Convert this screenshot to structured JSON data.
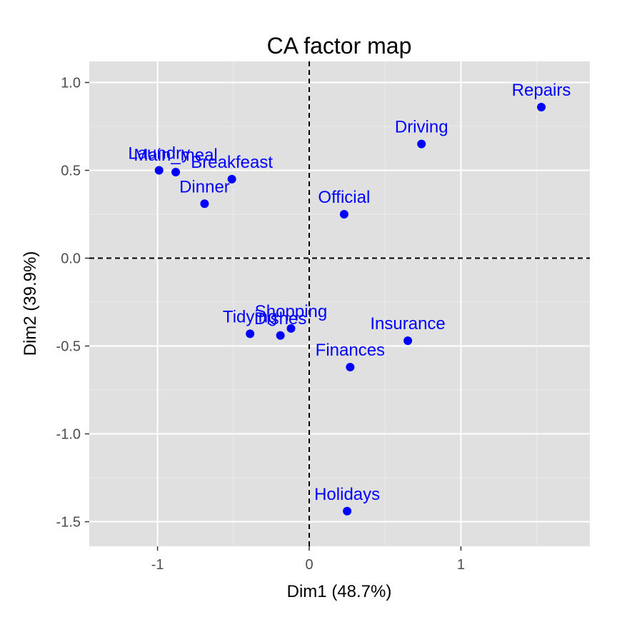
{
  "chart_data": {
    "type": "scatter",
    "title": "CA factor map",
    "xlabel": "Dim1 (48.7%)",
    "ylabel": "Dim2 (39.9%)",
    "xlim": [
      -1.45,
      1.85
    ],
    "ylim": [
      -1.64,
      1.12
    ],
    "xticks": [
      -1,
      0,
      1
    ],
    "xtick_labels": [
      "-1",
      "0",
      "1"
    ],
    "yticks": [
      1.0,
      0.5,
      0.0,
      -0.5,
      -1.0,
      -1.5
    ],
    "ytick_labels": [
      "1.0",
      "0.5",
      "0.0",
      "-0.5",
      "-1.0",
      "-1.5"
    ],
    "grid": true,
    "reference_lines": {
      "x": 0,
      "y": 0
    },
    "colors": {
      "panel": "#e0e0e0",
      "grid_major": "#ffffff",
      "grid_minor": "#ebebeb",
      "points": "#0000ff"
    },
    "points": [
      {
        "label": "Laundry",
        "x": -0.99,
        "y": 0.5
      },
      {
        "label": "Main_meal",
        "x": -0.88,
        "y": 0.49
      },
      {
        "label": "Dinner",
        "x": -0.69,
        "y": 0.31
      },
      {
        "label": "Breakfeast",
        "x": -0.51,
        "y": 0.45
      },
      {
        "label": "Tidying",
        "x": -0.39,
        "y": -0.43
      },
      {
        "label": "Dishes",
        "x": -0.19,
        "y": -0.44
      },
      {
        "label": "Shopping",
        "x": -0.12,
        "y": -0.4
      },
      {
        "label": "Official",
        "x": 0.23,
        "y": 0.25
      },
      {
        "label": "Driving",
        "x": 0.74,
        "y": 0.65
      },
      {
        "label": "Finances",
        "x": 0.27,
        "y": -0.62
      },
      {
        "label": "Insurance",
        "x": 0.65,
        "y": -0.47
      },
      {
        "label": "Repairs",
        "x": 1.53,
        "y": 0.86
      },
      {
        "label": "Holidays",
        "x": 0.25,
        "y": -1.44
      }
    ]
  }
}
